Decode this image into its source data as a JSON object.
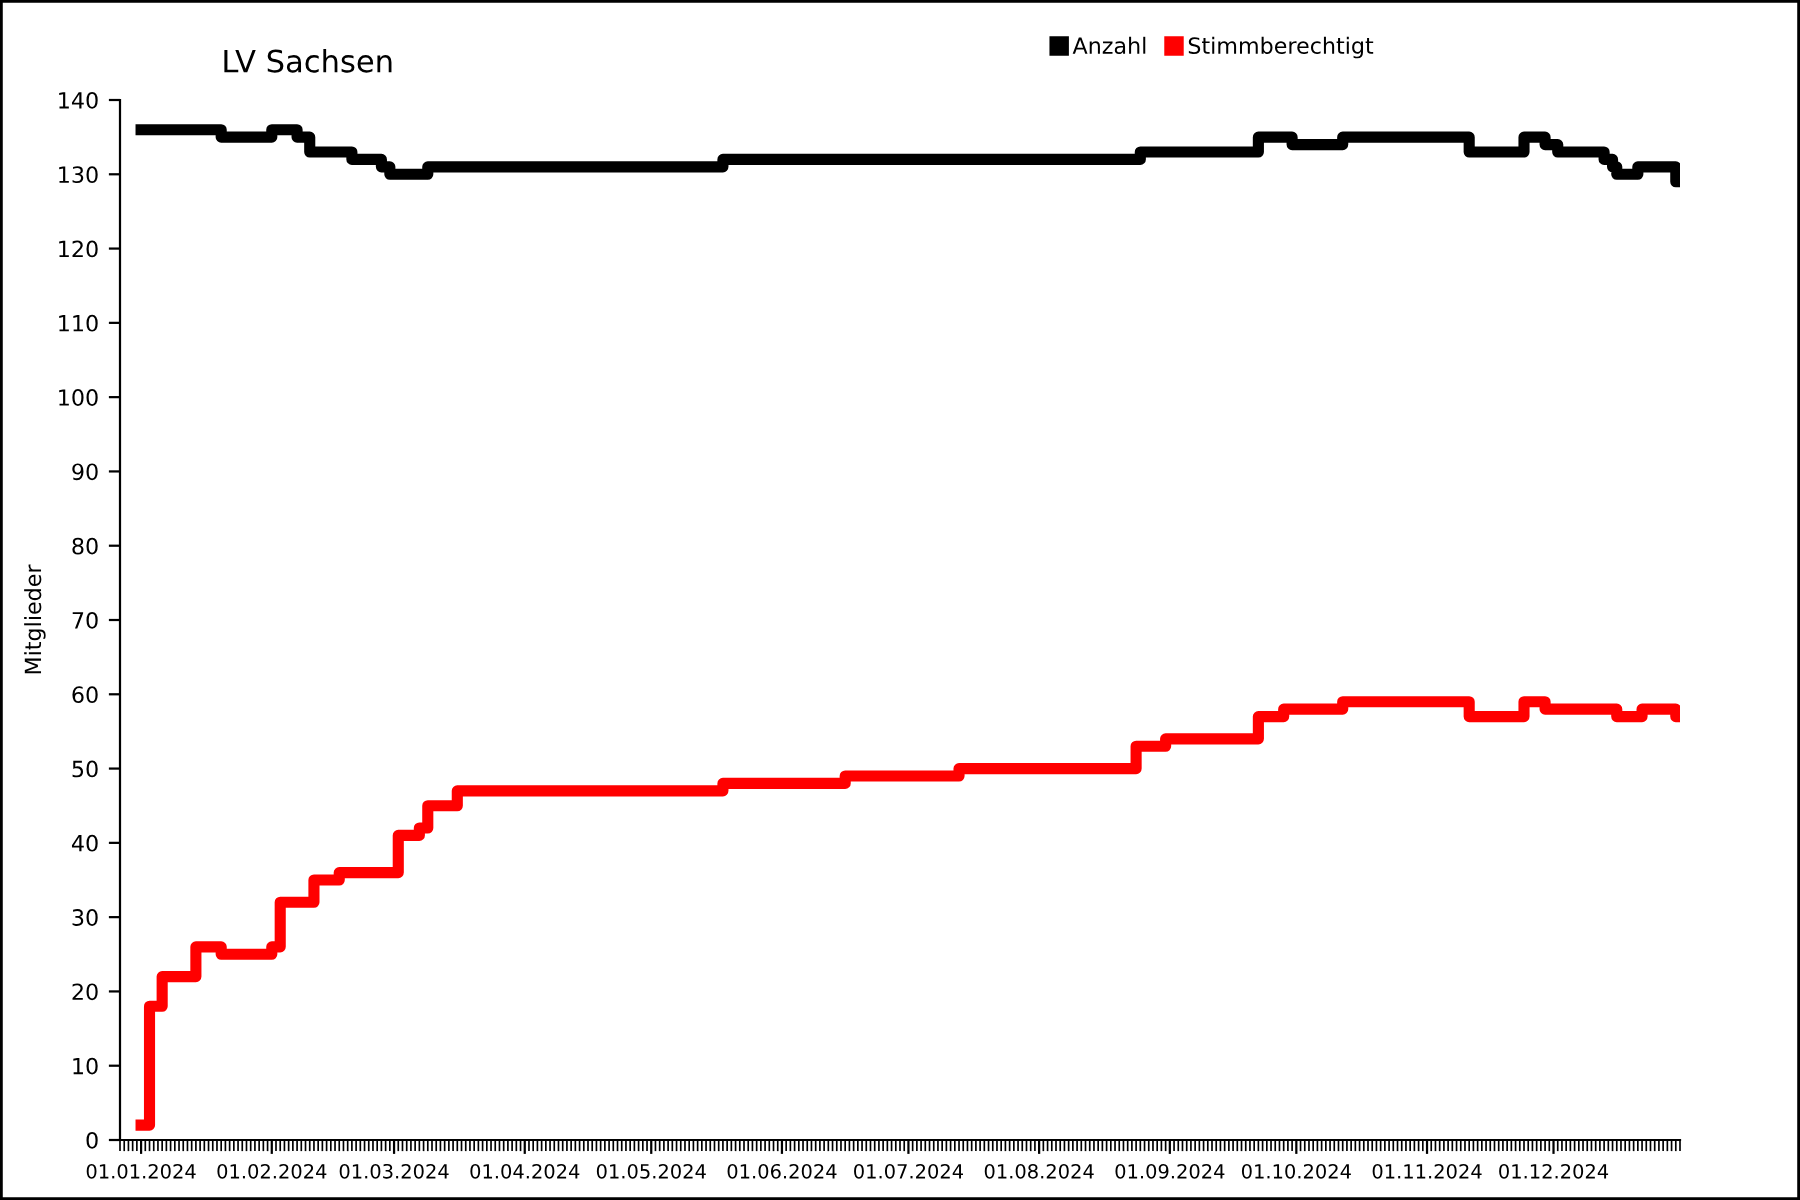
{
  "chart_data": {
    "type": "step",
    "title": "LV Sachsen",
    "ylabel": "Mitglieder",
    "xlim": [
      "2023-12-27",
      "2024-12-31"
    ],
    "ylim": [
      0,
      140
    ],
    "yticks": [
      0,
      10,
      20,
      30,
      40,
      50,
      60,
      70,
      80,
      90,
      100,
      110,
      120,
      130,
      140
    ],
    "xticks": [
      {
        "value": "2024-01-01",
        "label": "01.01.2024"
      },
      {
        "value": "2024-02-01",
        "label": "01.02.2024"
      },
      {
        "value": "2024-03-01",
        "label": "01.03.2024"
      },
      {
        "value": "2024-04-01",
        "label": "01.04.2024"
      },
      {
        "value": "2024-05-01",
        "label": "01.05.2024"
      },
      {
        "value": "2024-06-01",
        "label": "01.06.2024"
      },
      {
        "value": "2024-07-01",
        "label": "01.07.2024"
      },
      {
        "value": "2024-08-01",
        "label": "01.08.2024"
      },
      {
        "value": "2024-09-01",
        "label": "01.09.2024"
      },
      {
        "value": "2024-10-01",
        "label": "01.10.2024"
      },
      {
        "value": "2024-11-01",
        "label": "01.11.2024"
      },
      {
        "value": "2024-12-01",
        "label": "01.12.2024"
      }
    ],
    "grid": false,
    "legend": "top",
    "series": [
      {
        "name": "Anzahl",
        "color": "#000000",
        "x": [
          "2024-01-01",
          "2024-01-20",
          "2024-02-01",
          "2024-02-07",
          "2024-02-10",
          "2024-02-20",
          "2024-02-27",
          "2024-02-29",
          "2024-03-09",
          "2024-05-18",
          "2024-08-25",
          "2024-09-22",
          "2024-09-30",
          "2024-10-12",
          "2024-11-11",
          "2024-11-24",
          "2024-11-29",
          "2024-12-02",
          "2024-12-13",
          "2024-12-15",
          "2024-12-16",
          "2024-12-21",
          "2024-12-30",
          "2024-12-31"
        ],
        "values": [
          136,
          135,
          136,
          135,
          133,
          132,
          131,
          130,
          131,
          132,
          133,
          135,
          134,
          135,
          133,
          135,
          134,
          133,
          132,
          131,
          130,
          131,
          129,
          129
        ]
      },
      {
        "name": "Stimmberechtigt",
        "color": "#ff0000",
        "x": [
          "2024-01-01",
          "2024-01-03",
          "2024-01-06",
          "2024-01-14",
          "2024-01-20",
          "2024-02-01",
          "2024-02-03",
          "2024-02-11",
          "2024-02-17",
          "2024-03-02",
          "2024-03-07",
          "2024-03-09",
          "2024-03-16",
          "2024-05-18",
          "2024-06-16",
          "2024-07-13",
          "2024-08-24",
          "2024-08-31",
          "2024-09-22",
          "2024-09-28",
          "2024-10-12",
          "2024-11-11",
          "2024-11-24",
          "2024-11-29",
          "2024-12-16",
          "2024-12-22",
          "2024-12-30",
          "2024-12-31"
        ],
        "values": [
          2,
          18,
          22,
          26,
          25,
          26,
          32,
          35,
          36,
          41,
          42,
          45,
          47,
          48,
          49,
          50,
          53,
          54,
          57,
          58,
          59,
          57,
          59,
          58,
          57,
          58,
          57,
          57
        ]
      }
    ]
  }
}
